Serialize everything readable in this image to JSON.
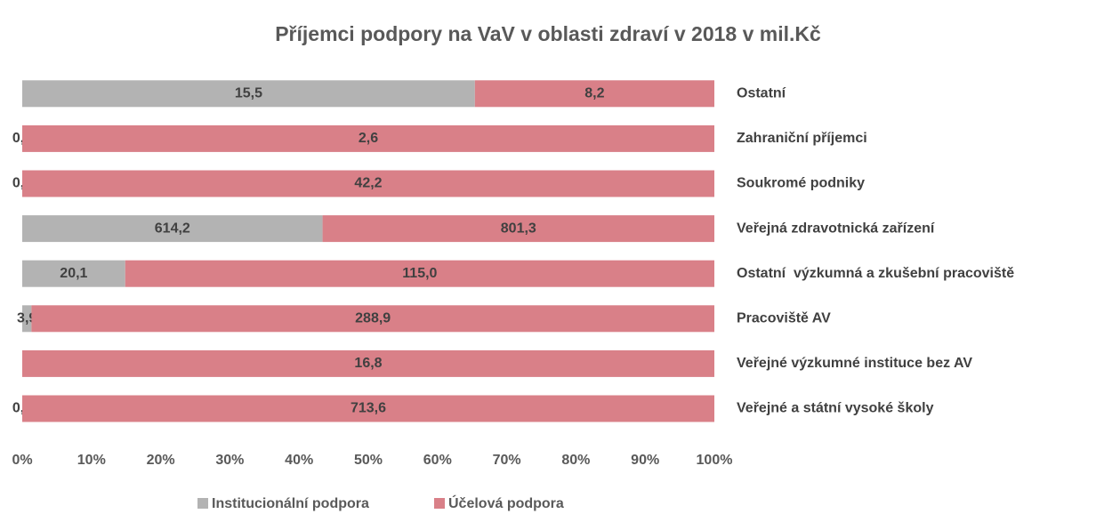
{
  "chart_data": {
    "type": "bar",
    "orientation": "horizontal",
    "stacking": "percent",
    "title": "Příjemci podpory na VaV v oblasti zdraví v 2018 v mil.Kč",
    "categories": [
      "Ostatní",
      "Zahraniční příjemci",
      "Soukromé podniky",
      "Veřejná zdravotnická zařízení",
      "Ostatní  výzkumná a zkušební pracoviště",
      "Pracoviště AV",
      "Veřejné výzkumné instituce bez AV",
      "Veřejné a státní vysoké školy"
    ],
    "series": [
      {
        "name": "Institucionální podpora",
        "color": "#b3b3b3",
        "values": [
          15.5,
          0,
          0,
          614.2,
          20.1,
          3.9,
          0,
          0
        ],
        "value_labels": [
          "15,5",
          "0,0",
          "0,0",
          "614,2",
          "20,1",
          "3,9",
          null,
          "0,0"
        ]
      },
      {
        "name": "Účelová podpora",
        "color": "#d98088",
        "values": [
          8.2,
          2.6,
          42.2,
          801.3,
          115.0,
          288.9,
          16.8,
          713.6
        ],
        "value_labels": [
          "8,2",
          "2,6",
          "42,2",
          "801,3",
          "115,0",
          "288,9",
          "16,8",
          "713,6"
        ]
      }
    ],
    "xlim": [
      0,
      100
    ],
    "xticks": [
      {
        "value": 0,
        "label": "0%"
      },
      {
        "value": 10,
        "label": "10%"
      },
      {
        "value": 20,
        "label": "20%"
      },
      {
        "value": 30,
        "label": "30%"
      },
      {
        "value": 40,
        "label": "40%"
      },
      {
        "value": 50,
        "label": "50%"
      },
      {
        "value": 60,
        "label": "60%"
      },
      {
        "value": 70,
        "label": "70%"
      },
      {
        "value": 80,
        "label": "80%"
      },
      {
        "value": 90,
        "label": "90%"
      },
      {
        "value": 100,
        "label": "100%"
      }
    ],
    "legend": "bottom"
  }
}
